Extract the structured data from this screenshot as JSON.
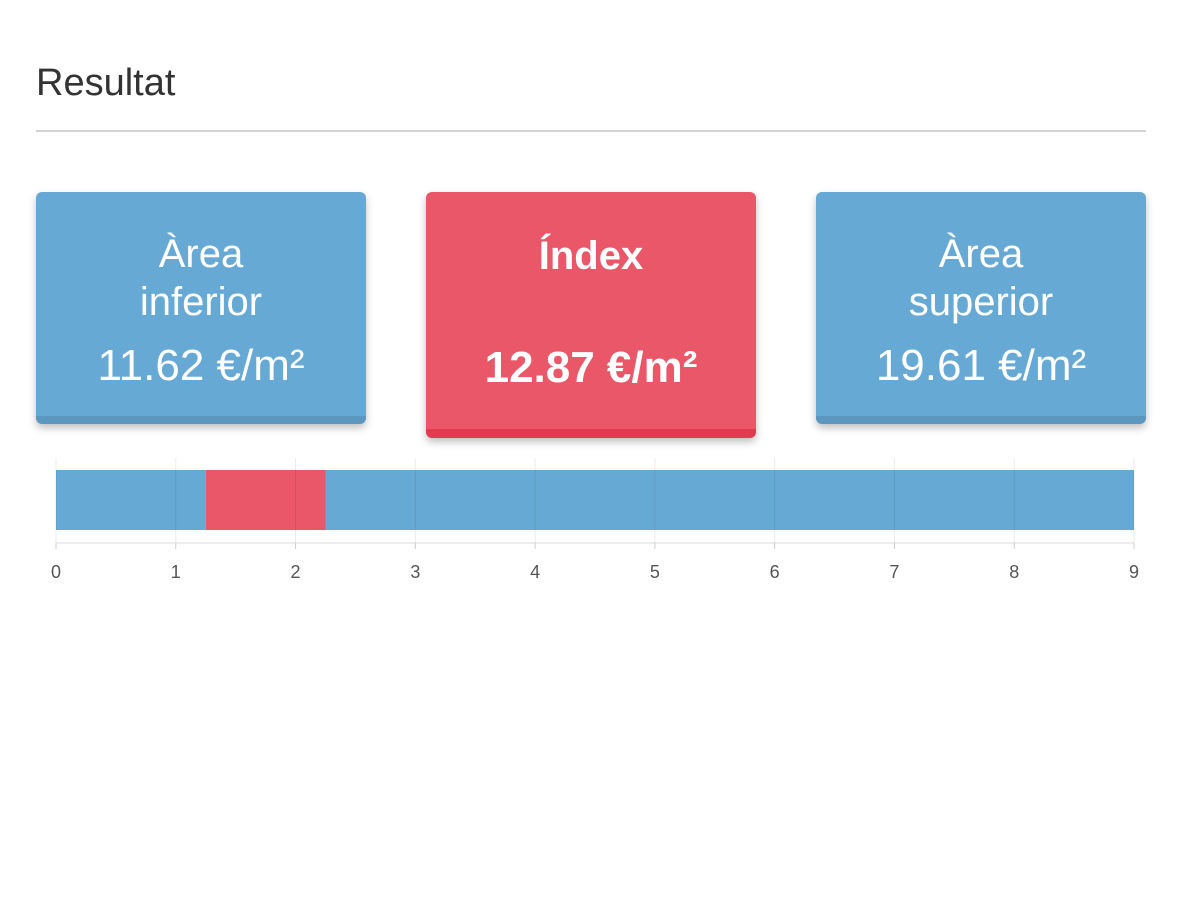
{
  "header": {
    "title": "Resultat"
  },
  "cards": [
    {
      "label": "Àrea inferior",
      "value": "11.62 €/m²"
    },
    {
      "label": "Índex",
      "value": "12.87 €/m²"
    },
    {
      "label": "Àrea superior",
      "value": "19.61 €/m²"
    }
  ],
  "chart_data": {
    "type": "bar",
    "orientation": "horizontal",
    "stacked": true,
    "categories": [
      null
    ],
    "series": [
      {
        "color": "#67a9d5",
        "values": [
          1.25
        ]
      },
      {
        "color": "#ea5768",
        "values": [
          1
        ]
      },
      {
        "color": "#67a9d5",
        "values": [
          6.75
        ]
      }
    ],
    "xlim": [
      0,
      9
    ],
    "xticks": [
      0,
      1,
      2,
      3,
      4,
      5,
      6,
      7,
      8,
      9
    ],
    "grid": true
  }
}
